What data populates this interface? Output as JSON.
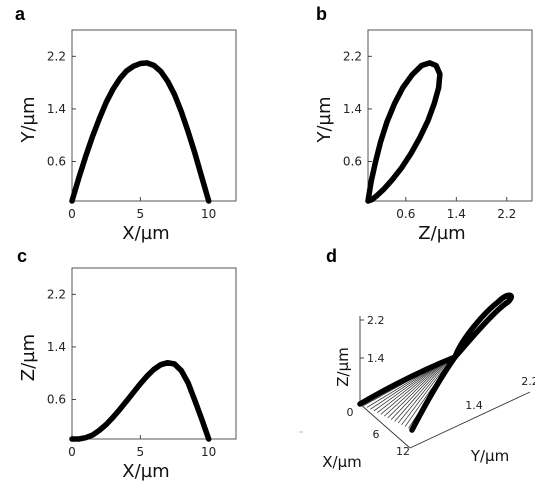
{
  "colors": {
    "curve": "#000000",
    "frame": "#555555",
    "background": "#ffffff"
  },
  "chart_data": [
    {
      "panel": "a",
      "type": "line",
      "title": "",
      "xlabel": "X/µm",
      "ylabel": "Y/µm",
      "xlim": [
        0,
        12
      ],
      "ylim": [
        0,
        2.6
      ],
      "xticks": [
        "0",
        "5",
        "10"
      ],
      "yticks": [
        "0.6",
        "1.4",
        "2.2"
      ],
      "grid": false,
      "series": [
        {
          "x": [
            0,
            0.5,
            1,
            1.5,
            2,
            2.5,
            3,
            3.5,
            4,
            4.5,
            5,
            5.5,
            6,
            6.5,
            7,
            7.5,
            8,
            8.5,
            9,
            9.5,
            10
          ],
          "y": [
            0,
            0.35,
            0.68,
            0.98,
            1.25,
            1.5,
            1.7,
            1.86,
            1.98,
            2.05,
            2.09,
            2.1,
            2.06,
            1.97,
            1.82,
            1.62,
            1.36,
            1.05,
            0.72,
            0.36,
            0
          ]
        }
      ]
    },
    {
      "panel": "b",
      "type": "line",
      "title": "",
      "xlabel": "Z/µm",
      "ylabel": "Y/µm",
      "xlim": [
        0,
        2.6
      ],
      "ylim": [
        0,
        2.6
      ],
      "xticks": [
        "0.6",
        "1.4",
        "2.2"
      ],
      "yticks": [
        "0.6",
        "1.4",
        "2.2"
      ],
      "grid": false,
      "series": [
        {
          "x": [
            0,
            0.05,
            0.12,
            0.2,
            0.3,
            0.42,
            0.55,
            0.7,
            0.85,
            0.98,
            1.08,
            1.14,
            1.12,
            1.05,
            0.95,
            0.82,
            0.68,
            0.53,
            0.38,
            0.25,
            0.14,
            0.06,
            0
          ],
          "y": [
            0,
            0.3,
            0.6,
            0.9,
            1.2,
            1.48,
            1.72,
            1.92,
            2.06,
            2.1,
            2.06,
            1.93,
            1.72,
            1.48,
            1.22,
            0.96,
            0.72,
            0.5,
            0.32,
            0.18,
            0.08,
            0.02,
            0
          ]
        }
      ]
    },
    {
      "panel": "c",
      "type": "line",
      "title": "",
      "xlabel": "X/µm",
      "ylabel": "Z/µm",
      "xlim": [
        0,
        12
      ],
      "ylim": [
        0,
        2.6
      ],
      "xticks": [
        "0",
        "5",
        "10"
      ],
      "yticks": [
        "0.6",
        "1.4",
        "2.2"
      ],
      "grid": false,
      "series": [
        {
          "x": [
            0,
            0.5,
            1,
            1.5,
            2,
            2.5,
            3,
            3.5,
            4,
            4.5,
            5,
            5.5,
            6,
            6.5,
            7,
            7.5,
            8,
            8.5,
            9,
            9.5,
            10
          ],
          "y": [
            0,
            0.0,
            0.02,
            0.06,
            0.13,
            0.22,
            0.33,
            0.45,
            0.58,
            0.71,
            0.84,
            0.96,
            1.06,
            1.13,
            1.16,
            1.14,
            1.04,
            0.85,
            0.58,
            0.3,
            0
          ]
        }
      ]
    },
    {
      "panel": "d",
      "type": "line",
      "title": "",
      "xlabel": "X/µm",
      "ylabel": "Y/µm",
      "zlabel": "Z/µm",
      "xticks": [
        "0",
        "6",
        "12"
      ],
      "yticks": [
        "1.4",
        "2.2"
      ],
      "zticks": [
        "1.4",
        "2.2"
      ],
      "grid": false,
      "series": [
        {
          "x": [
            0,
            1,
            2,
            3,
            4,
            5,
            6,
            7,
            8,
            9,
            10
          ],
          "y": [
            0,
            0.68,
            1.25,
            1.7,
            1.98,
            2.09,
            2.06,
            1.82,
            1.36,
            0.72,
            0
          ],
          "z": [
            0,
            0.02,
            0.13,
            0.33,
            0.58,
            0.84,
            1.06,
            1.16,
            1.04,
            0.58,
            0
          ]
        }
      ]
    }
  ]
}
